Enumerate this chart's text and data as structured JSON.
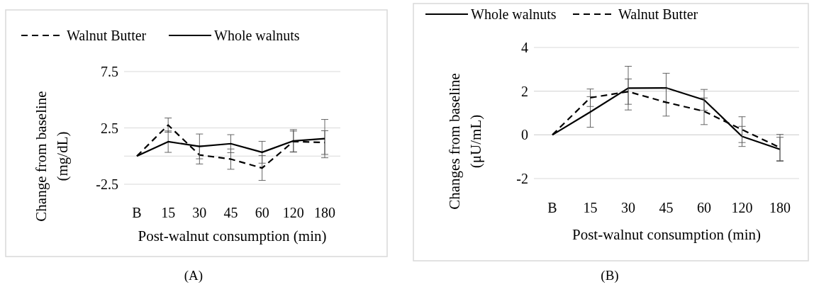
{
  "chart_data": [
    {
      "type": "line",
      "xlabel": "Post-walnut consumption (min)",
      "ylabel": "Change from baseline (mg/dL)",
      "categories": [
        "B",
        "15",
        "30",
        "45",
        "60",
        "120",
        "180"
      ],
      "ylim": [
        -2.5,
        7.5
      ],
      "yticks": [
        -2.5,
        2.5,
        7.5
      ],
      "grid": "y",
      "legend": "top",
      "annotations": [
        "(A)"
      ],
      "series": [
        {
          "name": "Walnut Butter",
          "color": "#000000",
          "line_style": "dashed",
          "values": [
            0,
            2.75,
            0.1,
            -0.27,
            -1.06,
            1.3,
            1.2
          ],
          "errors": [
            null,
            0.63,
            0.8,
            0.9,
            1.1,
            0.92,
            1.05
          ]
        },
        {
          "name": "Whole walnuts",
          "color": "#000000",
          "line_style": "solid",
          "values": [
            0,
            1.28,
            0.86,
            1.1,
            0.34,
            1.35,
            1.55
          ],
          "errors": [
            null,
            0.95,
            1.1,
            0.8,
            0.97,
            1.0,
            1.7
          ]
        }
      ]
    },
    {
      "type": "line",
      "xlabel": "Post-walnut consumption (min)",
      "ylabel": "Changes from baseline (μU/mL)",
      "categories": [
        "B",
        "15",
        "30",
        "45",
        "60",
        "120",
        "180"
      ],
      "ylim": [
        -2,
        4
      ],
      "yticks": [
        -2,
        0,
        2,
        4
      ],
      "grid": "y",
      "legend": "top",
      "annotations": [
        "(B)"
      ],
      "series": [
        {
          "name": "Whole walnuts",
          "color": "#000000",
          "line_style": "solid",
          "values": [
            0,
            1.05,
            2.14,
            2.15,
            1.6,
            -0.07,
            -0.66
          ],
          "errors": [
            null,
            0.7,
            1.0,
            0.67,
            0.48,
            0.46,
            0.55
          ]
        },
        {
          "name": "Walnut Butter",
          "color": "#000000",
          "line_style": "dashed",
          "values": [
            0,
            1.7,
            1.98,
            1.49,
            1.08,
            0.24,
            -0.58
          ],
          "errors": [
            null,
            0.4,
            0.58,
            0.63,
            0.61,
            0.59,
            0.6
          ]
        }
      ]
    }
  ]
}
